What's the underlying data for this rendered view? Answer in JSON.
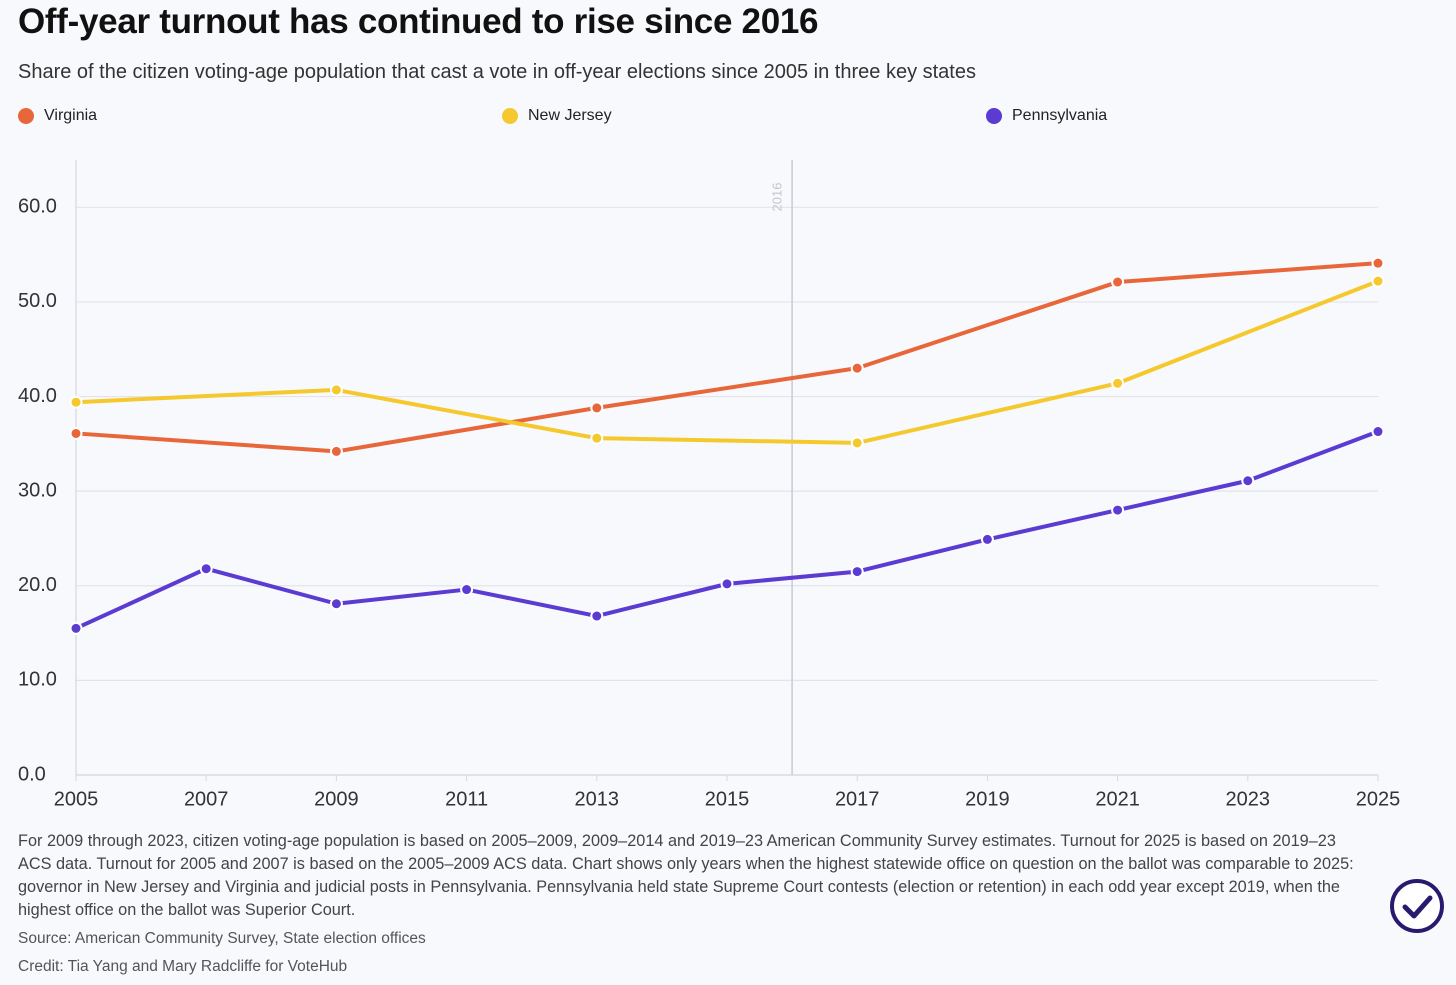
{
  "chart_data": {
    "type": "line",
    "title": "Off-year turnout has continued to rise since 2016",
    "subtitle": "Share of the citizen voting-age population that cast a vote in off-year elections since 2005 in three key states",
    "series": [
      {
        "name": "Virginia",
        "color": "#e8673a",
        "x": [
          2005,
          2009,
          2013,
          2017,
          2021,
          2025
        ],
        "values": [
          36.1,
          34.2,
          38.8,
          43.0,
          52.1,
          54.1
        ]
      },
      {
        "name": "New Jersey",
        "color": "#f5c92e",
        "x": [
          2005,
          2009,
          2013,
          2017,
          2021,
          2025
        ],
        "values": [
          39.4,
          40.7,
          35.6,
          35.1,
          41.4,
          52.2
        ]
      },
      {
        "name": "Pennsylvania",
        "color": "#5b3bd1",
        "x": [
          2005,
          2007,
          2009,
          2011,
          2013,
          2015,
          2017,
          2019,
          2021,
          2023,
          2025
        ],
        "values": [
          15.5,
          21.8,
          18.1,
          19.6,
          16.8,
          20.2,
          21.5,
          24.9,
          28.0,
          31.1,
          36.3
        ]
      }
    ],
    "xlim": [
      2005,
      2025
    ],
    "xticks": [
      2005,
      2007,
      2009,
      2011,
      2013,
      2015,
      2017,
      2019,
      2021,
      2023,
      2025
    ],
    "ylim": [
      0,
      65
    ],
    "yticks": [
      {
        "value": 0,
        "label": "0.0"
      },
      {
        "value": 10,
        "label": "10.0"
      },
      {
        "value": 20,
        "label": "20.0"
      },
      {
        "value": 30,
        "label": "30.0"
      },
      {
        "value": 40,
        "label": "40.0"
      },
      {
        "value": 50,
        "label": "50.0"
      },
      {
        "value": 60,
        "label": "60.0"
      }
    ],
    "grid": true,
    "annotation": {
      "x": 2016,
      "label": "2016"
    },
    "note": "For 2009 through 2023, citizen voting-age population is based on 2005–2009, 2009–2014 and 2019–23 American Community Survey estimates. Turnout for 2025 is based on 2019–23 ACS data. Turnout for 2005 and 2007 is based on the 2005–2009 ACS data. Chart shows only years when the highest statewide office on question on the ballot was comparable to 2025: governor in New Jersey and Virginia and judicial posts in Pennsylvania. Pennsylvania held state Supreme Court contests (election or retention) in each odd year except 2019, when the highest office on the ballot was Superior Court.",
    "source": "Source: American Community Survey, State election offices",
    "credit": "Credit: Tia Yang and Mary Radcliffe for VoteHub"
  }
}
